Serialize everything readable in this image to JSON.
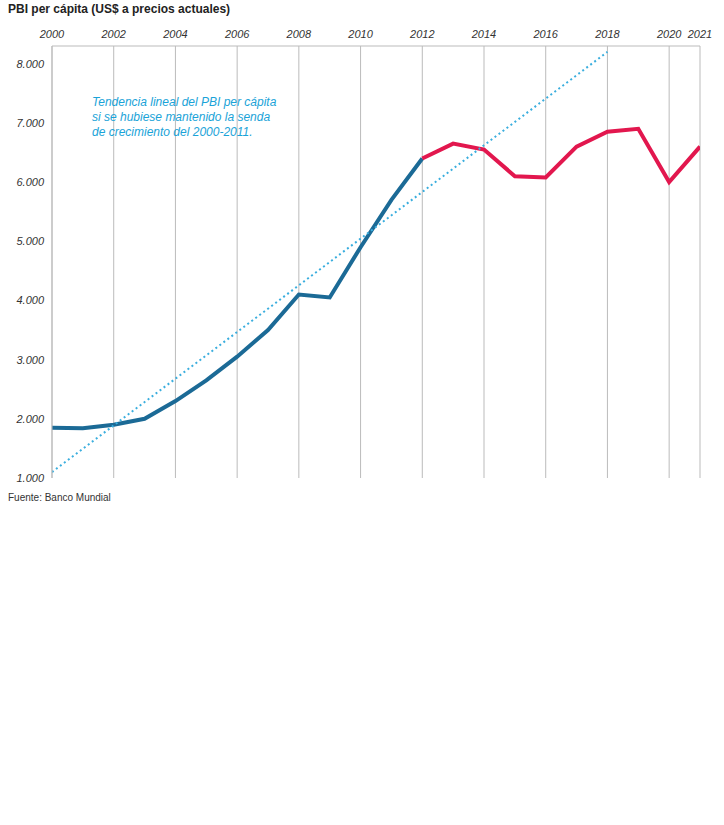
{
  "chart_data": {
    "type": "line",
    "title": "PBI per cápita (US$ a precios actuales)",
    "x": [
      2000,
      2001,
      2002,
      2003,
      2004,
      2005,
      2006,
      2007,
      2008,
      2009,
      2010,
      2011,
      2012,
      2013,
      2014,
      2015,
      2016,
      2017,
      2018,
      2019,
      2020,
      2021
    ],
    "series": [
      {
        "color": "#1b6a96",
        "values": [
          1850,
          1840,
          1900,
          2000,
          2300,
          2650,
          3050,
          3500,
          4100,
          4050,
          4900,
          5700,
          6400,
          null,
          null,
          null,
          null,
          null,
          null,
          null,
          null,
          null
        ]
      },
      {
        "color": "#e2174e",
        "values": [
          null,
          null,
          null,
          null,
          null,
          null,
          null,
          null,
          null,
          null,
          null,
          null,
          6400,
          6650,
          6550,
          6100,
          6080,
          6600,
          6850,
          6900,
          6000,
          6600
        ]
      },
      {
        "type": "line",
        "line_style": "dotted",
        "color": "#3aaede",
        "x": [
          2000,
          2018
        ],
        "values": [
          1100,
          8200
        ]
      }
    ],
    "xlim": [
      2000,
      2021
    ],
    "xticks": [
      2000,
      2002,
      2004,
      2006,
      2008,
      2010,
      2012,
      2014,
      2016,
      2018,
      2020,
      2021
    ],
    "ylim": [
      1000,
      8300
    ],
    "yticks": [
      {
        "value": 1000,
        "label": "1.000"
      },
      {
        "value": 2000,
        "label": "2.000"
      },
      {
        "value": 3000,
        "label": "3.000"
      },
      {
        "value": 4000,
        "label": "4.000"
      },
      {
        "value": 5000,
        "label": "5.000"
      },
      {
        "value": 6000,
        "label": "6.000"
      },
      {
        "value": 7000,
        "label": "7.000"
      },
      {
        "value": 8000,
        "label": "8.000"
      }
    ],
    "grid": true,
    "annotations": [
      "Tendencia lineal del PBI per cápita si se hubiese mantenido la senda de crecimiento del 2000-2011."
    ],
    "source": "Fuente: Banco Mundial"
  }
}
